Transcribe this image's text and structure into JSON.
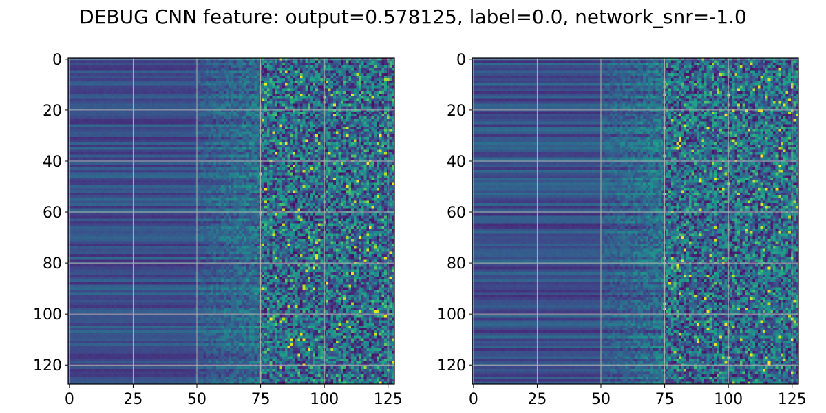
{
  "figure": {
    "title": "DEBUG CNN feature: output=0.578125, label=0.0, network_snr=-1.0"
  },
  "chart_data": [
    {
      "type": "heatmap",
      "title": "",
      "xlabel": "",
      "ylabel": "",
      "shape": [
        128,
        128
      ],
      "colormap": "viridis",
      "grid": true,
      "xlim": [
        -0.5,
        127.5
      ],
      "ylim": [
        127.5,
        -0.5
      ],
      "x_ticks": [
        0,
        25,
        50,
        75,
        100,
        125
      ],
      "y_ticks": [
        0,
        20,
        40,
        60,
        80,
        100,
        120
      ],
      "seed": 17
    },
    {
      "type": "heatmap",
      "title": "",
      "xlabel": "",
      "ylabel": "",
      "shape": [
        128,
        128
      ],
      "colormap": "viridis",
      "grid": true,
      "xlim": [
        -0.5,
        127.5
      ],
      "ylim": [
        127.5,
        -0.5
      ],
      "x_ticks": [
        0,
        25,
        50,
        75,
        100,
        125
      ],
      "y_ticks": [
        0,
        20,
        40,
        60,
        80,
        100,
        120
      ],
      "seed": 91
    }
  ]
}
